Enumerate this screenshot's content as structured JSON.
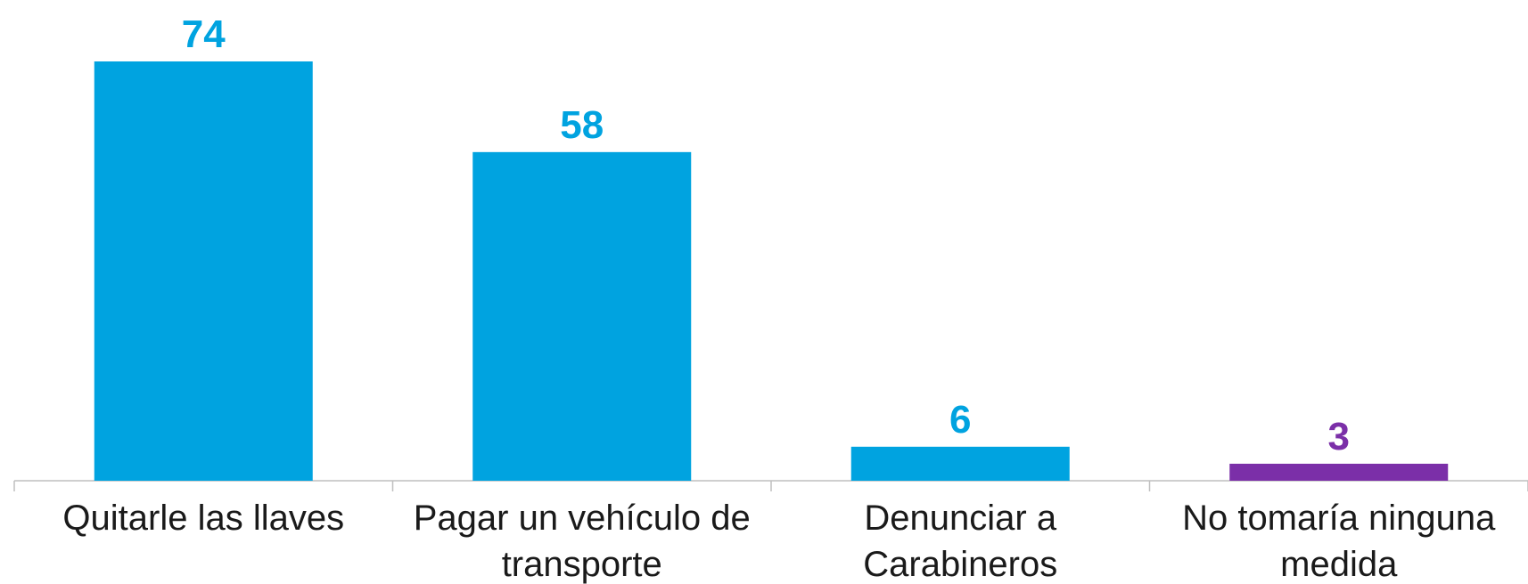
{
  "chart_data": {
    "type": "bar",
    "categories": [
      "Quitarle las llaves",
      "Pagar un vehículo de transporte",
      "Denunciar a Carabineros",
      "No tomaría ninguna medida"
    ],
    "values": [
      74,
      58,
      6,
      3
    ],
    "colors": [
      "#00a3e0",
      "#00a3e0",
      "#00a3e0",
      "#7b2fa8"
    ]
  }
}
